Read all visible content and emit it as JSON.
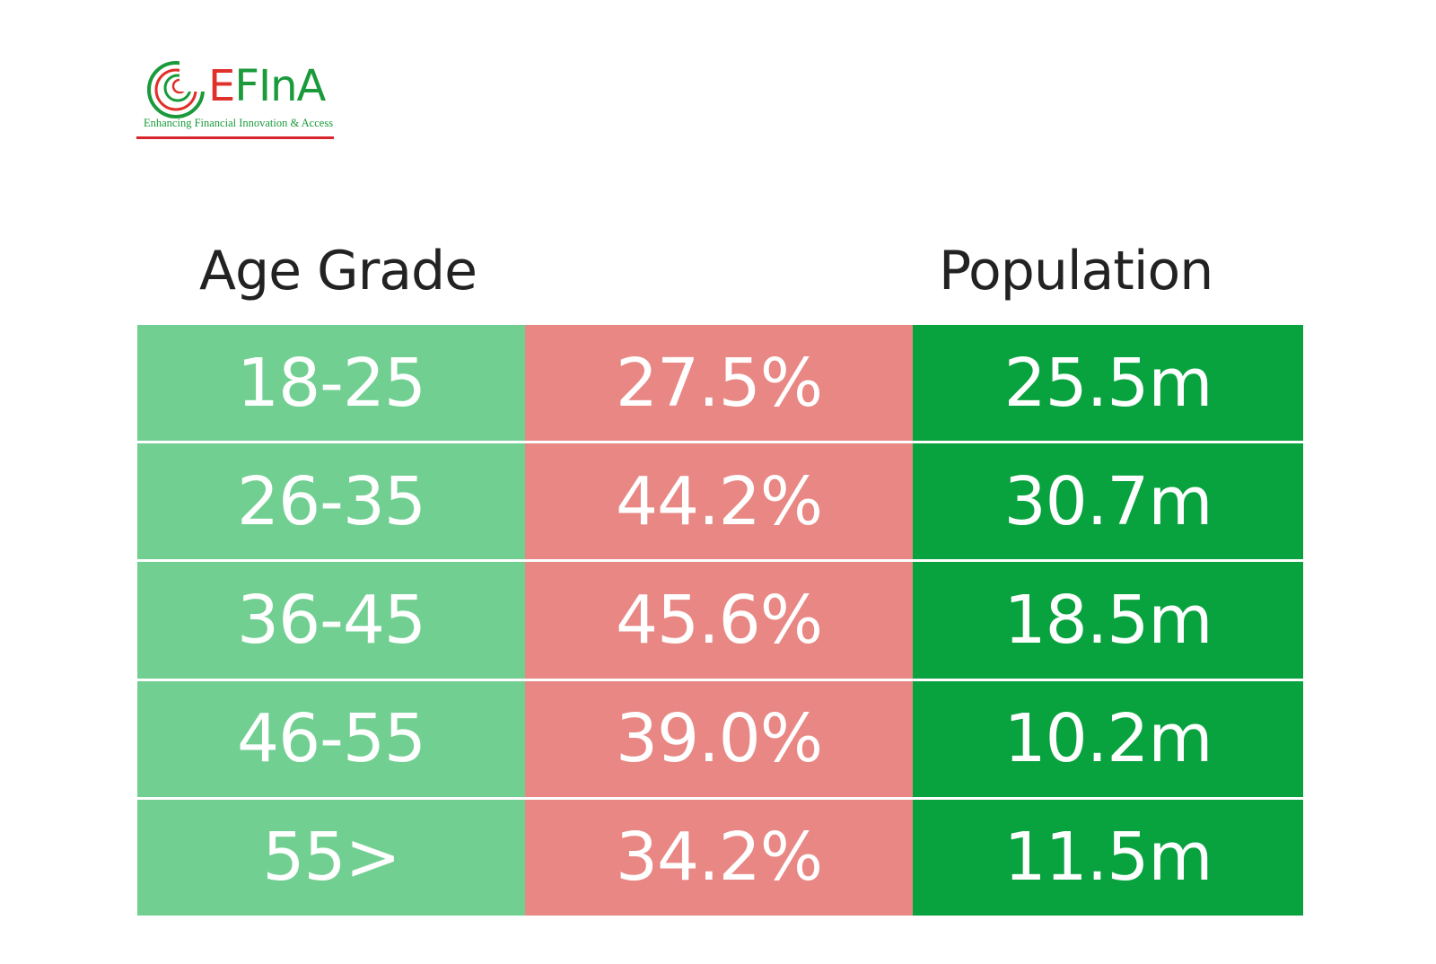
{
  "logo": {
    "wordmark_prefix": "E",
    "wordmark_rest": "FInA",
    "tagline": "Enhancing Financial Innovation & Access",
    "colors": {
      "green": "#1a9a3a",
      "red": "#d8242b"
    }
  },
  "headers": {
    "age_grade": "Age Grade",
    "percent": "",
    "population": "Population"
  },
  "rows": [
    {
      "age": "18-25",
      "percent": "27.5%",
      "population": "25.5m"
    },
    {
      "age": "26-35",
      "percent": "44.2%",
      "population": "30.7m"
    },
    {
      "age": "36-45",
      "percent": "45.6%",
      "population": "18.5m"
    },
    {
      "age": "46-55",
      "percent": "39.0%",
      "population": "10.2m"
    },
    {
      "age": "55>",
      "percent": "34.2%",
      "population": "11.5m"
    }
  ],
  "colors": {
    "age_column": "#72cf92",
    "percent_column": "#e88783",
    "population_column": "#08a23e"
  }
}
